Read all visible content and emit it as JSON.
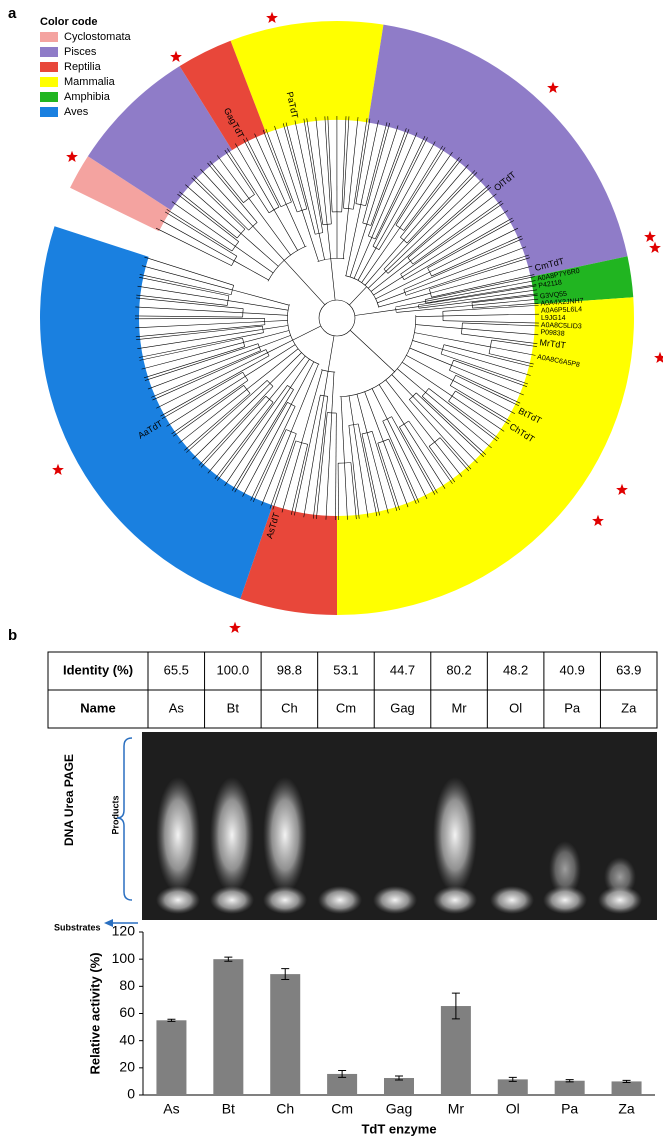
{
  "panel_a": {
    "label": "a",
    "legend": {
      "title": "Color code",
      "items": [
        {
          "name": "Cyclostomata",
          "color": "#f4a3a0"
        },
        {
          "name": "Pisces",
          "color": "#8f7cc8"
        },
        {
          "name": "Reptilia",
          "color": "#e8473a"
        },
        {
          "name": "Mammalia",
          "color": "#ffff00"
        },
        {
          "name": "Amphibia",
          "color": "#21b521"
        },
        {
          "name": "Aves",
          "color": "#1a80e0"
        }
      ]
    },
    "highlighted": [
      "PaTdT",
      "GagTdT",
      "OlTdT",
      "CmTdT",
      "MrTdT",
      "BtTdT",
      "ChTdT",
      "AsTdT",
      "AaTdT"
    ],
    "accessions": [
      "A0A8P7Y6R0",
      "P42118",
      "G3VQ55",
      "A0A4X2JNH7",
      "A0A6P5L6L4",
      "L9JG14",
      "A0A8C5LID3",
      "P09838",
      "A0A8C6A5P8"
    ]
  },
  "panel_b": {
    "label": "b",
    "table": {
      "rows": [
        [
          "Identity (%)",
          "65.5",
          "100.0",
          "98.8",
          "53.1",
          "44.7",
          "80.2",
          "48.2",
          "40.9",
          "63.9"
        ],
        [
          "Name",
          "As",
          "Bt",
          "Ch",
          "Cm",
          "Gag",
          "Mr",
          "Ol",
          "Pa",
          "Za"
        ]
      ]
    },
    "gel": {
      "title": "DNA Urea PAGE",
      "products": "Products",
      "substrates": "Substrates"
    }
  },
  "chart_data": {
    "type": "bar",
    "categories": [
      "As",
      "Bt",
      "Ch",
      "Cm",
      "Gag",
      "Mr",
      "Ol",
      "Pa",
      "Za"
    ],
    "values": [
      55,
      100,
      89,
      15.5,
      12.5,
      65.5,
      11.5,
      10.5,
      10
    ],
    "errors": [
      0.8,
      1.5,
      4,
      2.5,
      1.5,
      9.5,
      1.5,
      0.8,
      0.8
    ],
    "color": "#808080",
    "y_label": "Relative activity (%)",
    "x_label": "TdT enzyme",
    "ylim": [
      0,
      120
    ],
    "yticks": [
      0,
      20,
      40,
      60,
      80,
      100,
      120
    ]
  }
}
